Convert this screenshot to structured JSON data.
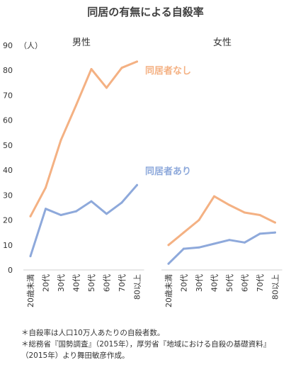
{
  "title": "同居の有無による自殺率",
  "colors": {
    "with_spouse": "#8EA9DB",
    "without_spouse": "#F4B183",
    "axis": "#D9D9D9",
    "text": "#333333"
  },
  "chart_data": {
    "type": "line",
    "y_unit": "（人）",
    "ylim": [
      0,
      90
    ],
    "yticks": [
      "0",
      "10",
      "20",
      "30",
      "40",
      "50",
      "60",
      "70",
      "80",
      "90"
    ],
    "categories": [
      "20歳未満",
      "20代",
      "30代",
      "40代",
      "50代",
      "60代",
      "70代",
      "80以上"
    ],
    "panels": [
      {
        "label": "男性",
        "series": [
          {
            "name": "同居者なし",
            "color": "#F4B183",
            "values": [
              21.5,
              33,
              52,
              66,
              80.5,
              73,
              81,
              83.5
            ]
          },
          {
            "name": "同居者あり",
            "color": "#8EA9DB",
            "values": [
              5.5,
              24.5,
              22,
              23.5,
              27.5,
              22.5,
              27,
              34
            ]
          }
        ]
      },
      {
        "label": "女性",
        "series": [
          {
            "name": "同居者なし",
            "color": "#F4B183",
            "values": [
              10,
              15,
              20,
              29.5,
              26,
              23,
              22,
              19
            ]
          },
          {
            "name": "同居者あり",
            "color": "#8EA9DB",
            "values": [
              2.5,
              8.5,
              9,
              10.5,
              12,
              11,
              14.5,
              15
            ]
          }
        ]
      }
    ]
  },
  "notes": [
    "＊自殺率は人口10万人あたりの自殺者数。",
    "＊総務省『国勢調査』（2015年），厚労省『地域における自殺の基礎資料』",
    "（2015年）より舞田敏彦作成。"
  ]
}
